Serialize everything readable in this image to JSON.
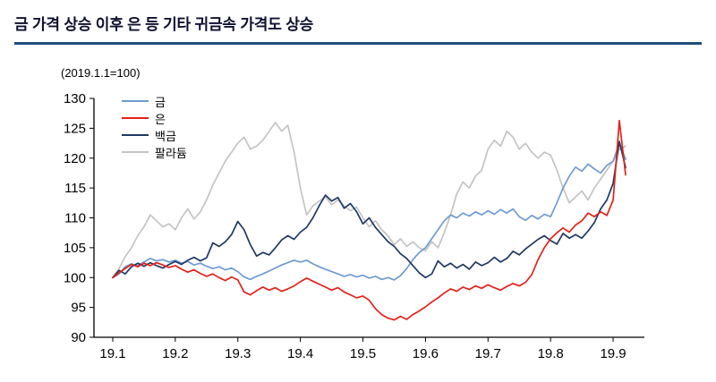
{
  "page": {
    "title": "금 가격 상승 이후 은 등 기타 귀금속 가격도 상승",
    "rule_color": "#1f4e79"
  },
  "chart": {
    "axis_note": "(2019.1.1=100)"
  },
  "chart_data": {
    "type": "line",
    "title": "금 가격 상승 이후 은 등 기타 귀금속 가격도 상승",
    "subtitle": "(2019.1.1=100)",
    "xlabel": "",
    "ylabel": "",
    "ylim": [
      90,
      130
    ],
    "y_ticks": [
      90,
      95,
      100,
      105,
      110,
      115,
      120,
      125,
      130
    ],
    "x_ticks": [
      19.1,
      19.2,
      19.3,
      19.4,
      19.5,
      19.6,
      19.7,
      19.8,
      19.9
    ],
    "x_tick_labels": [
      "19.1",
      "19.2",
      "19.3",
      "19.4",
      "19.5",
      "19.6",
      "19.7",
      "19.8",
      "19.9"
    ],
    "grid": false,
    "legend_position": "upper-left",
    "x": [
      19.1,
      19.11,
      19.12,
      19.13,
      19.14,
      19.15,
      19.16,
      19.17,
      19.18,
      19.19,
      19.2,
      19.21,
      19.22,
      19.23,
      19.24,
      19.25,
      19.26,
      19.27,
      19.28,
      19.29,
      19.3,
      19.31,
      19.32,
      19.33,
      19.34,
      19.35,
      19.36,
      19.37,
      19.38,
      19.39,
      19.4,
      19.41,
      19.42,
      19.43,
      19.44,
      19.45,
      19.46,
      19.47,
      19.48,
      19.49,
      19.5,
      19.51,
      19.52,
      19.53,
      19.54,
      19.55,
      19.56,
      19.57,
      19.58,
      19.59,
      19.6,
      19.61,
      19.62,
      19.63,
      19.64,
      19.65,
      19.66,
      19.67,
      19.68,
      19.69,
      19.7,
      19.71,
      19.72,
      19.73,
      19.74,
      19.75,
      19.76,
      19.77,
      19.78,
      19.79,
      19.8,
      19.81,
      19.82,
      19.83,
      19.84,
      19.85,
      19.86,
      19.87,
      19.88,
      19.89,
      19.9,
      19.91,
      19.92
    ],
    "series": [
      {
        "name": "금",
        "color": "#6f9bd2",
        "values": [
          100,
          100.6,
          101.8,
          102.3,
          102,
          102.6,
          103.2,
          102.8,
          103,
          102.6,
          102.9,
          102.4,
          102.7,
          102.1,
          102.4,
          101.9,
          101.5,
          101.8,
          101.3,
          101.6,
          101,
          100.1,
          99.7,
          100.2,
          100.6,
          101.1,
          101.6,
          102.1,
          102.5,
          102.9,
          102.6,
          102.9,
          102.3,
          101.8,
          101.4,
          101,
          100.6,
          100.2,
          100.5,
          100.1,
          100.4,
          99.9,
          100.2,
          99.7,
          100,
          99.6,
          100.3,
          101.5,
          103,
          104.2,
          105,
          106.5,
          108,
          109.5,
          110.5,
          110,
          110.8,
          110.3,
          111,
          110.5,
          111.2,
          110.6,
          111.4,
          110.8,
          111.5,
          110.2,
          109.6,
          110.4,
          109.8,
          110.6,
          110.2,
          112.5,
          115,
          117,
          118.5,
          117.8,
          119,
          118.2,
          117.5,
          118.8,
          119.5,
          122.5,
          119.8
        ]
      },
      {
        "name": "은",
        "color": "#e3211a",
        "values": [
          100,
          100.8,
          101.5,
          102.2,
          101.8,
          102.4,
          102,
          102.5,
          102.1,
          101.7,
          102,
          101.4,
          100.9,
          101.3,
          100.7,
          100.2,
          100.6,
          100,
          99.5,
          100.1,
          99.6,
          97.6,
          97.1,
          97.8,
          98.4,
          97.9,
          98.3,
          97.7,
          98.1,
          98.6,
          99.3,
          99.9,
          99.4,
          98.9,
          98.4,
          97.9,
          98.3,
          97.6,
          97.1,
          96.6,
          96.9,
          96.2,
          94.8,
          93.8,
          93.2,
          92.9,
          93.5,
          93,
          93.8,
          94.4,
          95.1,
          95.9,
          96.6,
          97.4,
          98.1,
          97.7,
          98.4,
          98,
          98.6,
          98.2,
          98.8,
          98.3,
          97.9,
          98.5,
          99,
          98.6,
          99.2,
          100.5,
          103,
          105,
          106.5,
          107.5,
          108.3,
          107.6,
          108.8,
          109.5,
          110.8,
          110.2,
          111,
          110.4,
          113,
          126.3,
          117.2
        ]
      },
      {
        "name": "백금",
        "color": "#1f3864",
        "values": [
          100,
          101.2,
          100.6,
          101.8,
          102.4,
          101.9,
          102.5,
          102,
          101.6,
          102.2,
          102.7,
          102.2,
          102.9,
          103.4,
          102.8,
          103.3,
          105.8,
          105.2,
          106,
          107.2,
          109.4,
          108,
          105.5,
          103.6,
          104.2,
          103.8,
          105,
          106.3,
          107,
          106.4,
          107.6,
          108.4,
          110,
          112,
          113.8,
          112.8,
          113.4,
          111.6,
          112.4,
          111,
          109,
          110,
          108.4,
          107.2,
          106,
          105.2,
          104,
          103.2,
          102,
          100.8,
          100,
          100.6,
          102.8,
          101.8,
          102.4,
          101.6,
          102.2,
          101.4,
          102.6,
          102,
          102.5,
          103.4,
          102.6,
          103.2,
          104.4,
          103.8,
          104.8,
          105.6,
          106.4,
          107,
          106.2,
          105.6,
          107.4,
          106.6,
          107.2,
          106.6,
          107.8,
          109.2,
          111.5,
          113,
          115.8,
          122.8,
          118.4
        ]
      },
      {
        "name": "팔라듐",
        "color": "#c4c4c4",
        "values": [
          100,
          101.5,
          103.5,
          105,
          107,
          108.5,
          110.5,
          109.5,
          108.5,
          109,
          108,
          110,
          111.5,
          109.8,
          111,
          113,
          115.5,
          117.5,
          119.5,
          121,
          122.5,
          123.5,
          121.5,
          122,
          123,
          124.5,
          126,
          124.5,
          125.5,
          121,
          115,
          110.5,
          112,
          112.8,
          113.5,
          112.2,
          113,
          112,
          111.2,
          111.8,
          110,
          108.5,
          109.5,
          108,
          107,
          105.5,
          106.5,
          105.2,
          106,
          105,
          104.5,
          106,
          105,
          107.5,
          110.5,
          114,
          116,
          115,
          117,
          118,
          121.5,
          123,
          122,
          124.5,
          123.5,
          121.5,
          122.5,
          121,
          120,
          121,
          120.5,
          118,
          115,
          112.5,
          113.5,
          114.5,
          113,
          115,
          116.5,
          118,
          119.5,
          121.5,
          122
        ]
      }
    ]
  }
}
